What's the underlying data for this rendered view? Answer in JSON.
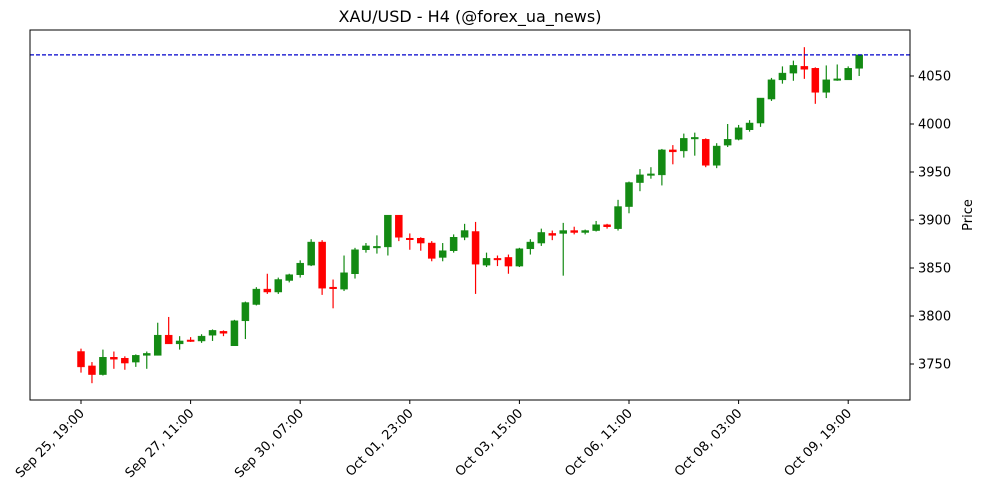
{
  "chart_data": {
    "type": "candlestick",
    "title": "XAU/USD - H4 (@forex_ua_news)",
    "xlabel": "",
    "ylabel": "Price",
    "ylim": [
      3712.5,
      4097.9
    ],
    "grid": false,
    "y_ticks": [
      3750,
      3800,
      3850,
      3900,
      3950,
      4000,
      4050
    ],
    "x_ticks": [
      {
        "index": 0,
        "label": "Sep 25, 19:00"
      },
      {
        "index": 10,
        "label": "Sep 27, 11:00"
      },
      {
        "index": 20,
        "label": "Sep 30, 07:00"
      },
      {
        "index": 30,
        "label": "Oct 01, 23:00"
      },
      {
        "index": 40,
        "label": "Oct 03, 15:00"
      },
      {
        "index": 50,
        "label": "Oct 06, 11:00"
      },
      {
        "index": 60,
        "label": "Oct 08, 03:00"
      },
      {
        "index": 70,
        "label": "Oct 09, 19:00"
      }
    ],
    "reference_line": {
      "value": 4072,
      "color": "#0000cc",
      "style": "dashed"
    },
    "colors": {
      "up": "#138a13",
      "down": "#ff0000"
    },
    "ohlc": [
      [
        3763,
        3766,
        3741,
        3747
      ],
      [
        3748,
        3752,
        3730,
        3739
      ],
      [
        3739,
        3765,
        3738,
        3757
      ],
      [
        3757,
        3763,
        3745,
        3755
      ],
      [
        3756,
        3758,
        3744,
        3751
      ],
      [
        3752,
        3760,
        3747,
        3759
      ],
      [
        3759,
        3763,
        3745,
        3761
      ],
      [
        3759,
        3793,
        3759,
        3780
      ],
      [
        3780,
        3799,
        3771,
        3771
      ],
      [
        3771,
        3779,
        3765,
        3774
      ],
      [
        3775,
        3778,
        3773,
        3774
      ],
      [
        3774,
        3781,
        3772,
        3779
      ],
      [
        3780,
        3786,
        3774,
        3785
      ],
      [
        3784,
        3785,
        3779,
        3782
      ],
      [
        3769,
        3796,
        3769,
        3795
      ],
      [
        3795,
        3815,
        3776,
        3814
      ],
      [
        3812,
        3830,
        3811,
        3828
      ],
      [
        3828,
        3844,
        3823,
        3825
      ],
      [
        3825,
        3840,
        3823,
        3838
      ],
      [
        3837,
        3844,
        3835,
        3843
      ],
      [
        3843,
        3858,
        3840,
        3855
      ],
      [
        3853,
        3880,
        3852,
        3877
      ],
      [
        3877,
        3879,
        3822,
        3829
      ],
      [
        3830,
        3838,
        3808,
        3829
      ],
      [
        3828,
        3863,
        3826,
        3845
      ],
      [
        3844,
        3871,
        3839,
        3869
      ],
      [
        3869,
        3876,
        3866,
        3873
      ],
      [
        3872,
        3884,
        3865,
        3872.5
      ],
      [
        3872,
        3905,
        3863,
        3905
      ],
      [
        3905,
        3905,
        3878,
        3882
      ],
      [
        3881,
        3886,
        3869,
        3880
      ],
      [
        3881,
        3882,
        3868,
        3876
      ],
      [
        3876,
        3878,
        3857,
        3860
      ],
      [
        3861,
        3876,
        3857,
        3868
      ],
      [
        3868,
        3885,
        3866,
        3882
      ],
      [
        3882,
        3896,
        3879,
        3889
      ],
      [
        3888,
        3898,
        3823,
        3854
      ],
      [
        3853,
        3866,
        3851,
        3860
      ],
      [
        3860,
        3863,
        3852,
        3859
      ],
      [
        3861,
        3864,
        3844,
        3852
      ],
      [
        3852,
        3871,
        3851,
        3870
      ],
      [
        3870,
        3880,
        3864,
        3877
      ],
      [
        3876,
        3891,
        3873,
        3887
      ],
      [
        3886,
        3889,
        3879,
        3884
      ],
      [
        3886,
        3897,
        3842,
        3889
      ],
      [
        3889,
        3893,
        3885,
        3887
      ],
      [
        3887,
        3890,
        3885,
        3889
      ],
      [
        3889,
        3899,
        3888,
        3895
      ],
      [
        3895,
        3896,
        3891,
        3893
      ],
      [
        3891,
        3921,
        3889,
        3914
      ],
      [
        3914,
        3940,
        3907,
        3939
      ],
      [
        3939,
        3953,
        3930,
        3947
      ],
      [
        3947,
        3955,
        3943,
        3948
      ],
      [
        3947,
        3974,
        3936,
        3973
      ],
      [
        3973,
        3978,
        3958,
        3971
      ],
      [
        3972,
        3990,
        3965,
        3985
      ],
      [
        3985,
        3991,
        3967,
        3986
      ],
      [
        3984,
        3985,
        3955,
        3957
      ],
      [
        3957,
        3980,
        3954,
        3977
      ],
      [
        3978,
        4000,
        3976,
        3984
      ],
      [
        3984,
        3999,
        3983,
        3996
      ],
      [
        3994,
        4004,
        3992,
        4001
      ],
      [
        4001,
        4027,
        3997,
        4027
      ],
      [
        4026,
        4048,
        4024,
        4046
      ],
      [
        4046,
        4060,
        4042,
        4053
      ],
      [
        4053,
        4066,
        4045,
        4061
      ],
      [
        4060,
        4080,
        4047,
        4057
      ],
      [
        4058,
        4059,
        4021,
        4033
      ],
      [
        4033,
        4061,
        4027,
        4046
      ],
      [
        4046,
        4062,
        4045,
        4047
      ],
      [
        4046,
        4060,
        4048,
        4058
      ],
      [
        4058,
        4072,
        4050,
        4072
      ]
    ]
  }
}
